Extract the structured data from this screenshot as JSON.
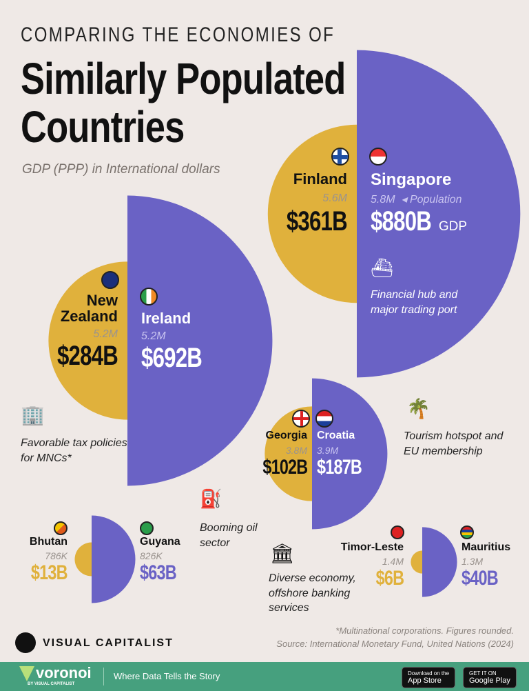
{
  "header": {
    "kicker": "COMPARING THE ECONOMIES OF",
    "title_line1": "Similarly Populated",
    "title_line2": "Countries",
    "subtitle": "GDP (PPP) in International dollars"
  },
  "chart_data": {
    "type": "paired-semicircle",
    "title": "Similarly Populated Countries",
    "subtitle": "GDP (PPP) in International dollars",
    "series_colors": {
      "left": "#e0b13c",
      "right": "#6a62c5"
    },
    "pairs": [
      {
        "left": {
          "country": "Finland",
          "population": "5.6M",
          "gdp": "$361B",
          "gdp_value": 361
        },
        "right": {
          "country": "Singapore",
          "population": "5.8M",
          "gdp": "$880B",
          "gdp_value": 880
        },
        "note": "Financial hub and major trading port"
      },
      {
        "left": {
          "country": "New Zealand",
          "population": "5.2M",
          "gdp": "$284B",
          "gdp_value": 284
        },
        "right": {
          "country": "Ireland",
          "population": "5.2M",
          "gdp": "$692B",
          "gdp_value": 692
        },
        "note": "Favorable tax policies for MNCs*"
      },
      {
        "left": {
          "country": "Georgia",
          "population": "3.8M",
          "gdp": "$102B",
          "gdp_value": 102
        },
        "right": {
          "country": "Croatia",
          "population": "3.9M",
          "gdp": "$187B",
          "gdp_value": 187
        },
        "note": "Tourism hotspot and EU membership"
      },
      {
        "left": {
          "country": "Bhutan",
          "population": "786K",
          "gdp": "$13B",
          "gdp_value": 13
        },
        "right": {
          "country": "Guyana",
          "population": "826K",
          "gdp": "$63B",
          "gdp_value": 63
        },
        "note": "Booming oil sector"
      },
      {
        "left": {
          "country": "Timor-Leste",
          "population": "1.4M",
          "gdp": "$6B",
          "gdp_value": 6
        },
        "right": {
          "country": "Mauritius",
          "population": "1.3M",
          "gdp": "$40B",
          "gdp_value": 40
        },
        "note": "Diverse economy, offshore banking services"
      }
    ],
    "legend": {
      "population": "Population",
      "gdp": "GDP"
    }
  },
  "footer": {
    "footnote": "*Multinational corporations. Figures rounded.",
    "source": "Source: International Monetary Fund, United Nations (2024)",
    "brand": "VISUAL CAPITALIST",
    "voronoi": "voronoi",
    "voronoi_sub": "BY VISUAL CAPITALIST",
    "tagline": "Where Data Tells the Story",
    "appstore_small": "Download on the",
    "appstore": "App Store",
    "gplay_small": "GET IT ON",
    "gplay": "Google Play"
  }
}
